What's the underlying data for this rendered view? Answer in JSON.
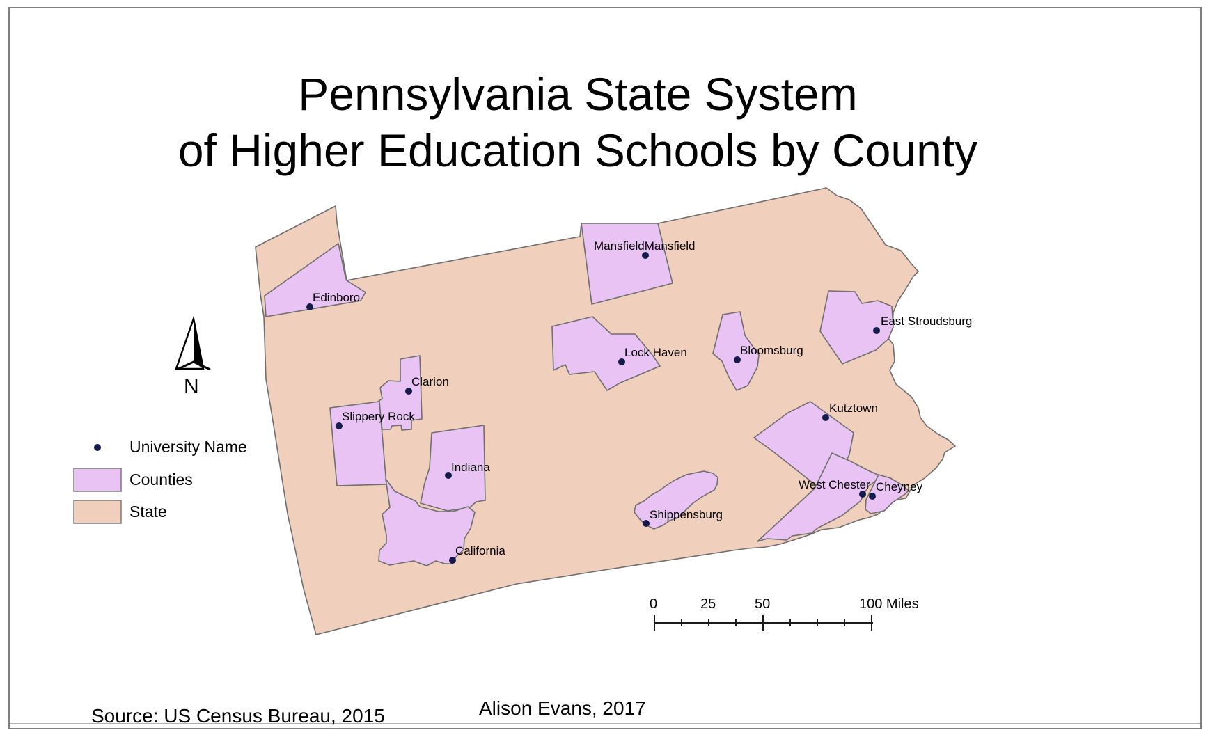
{
  "title": {
    "line1": "Pennsylvania State System",
    "line2": "of Higher Education Schools by County"
  },
  "schools": [
    {
      "name": "Edinboro"
    },
    {
      "name": "MansfieldMansfield"
    },
    {
      "name": "East Stroudsburg"
    },
    {
      "name": "Lock Haven"
    },
    {
      "name": "Bloomsburg"
    },
    {
      "name": "Clarion"
    },
    {
      "name": "Slippery Rock"
    },
    {
      "name": "Kutztown"
    },
    {
      "name": "Indiana"
    },
    {
      "name": "West Chester"
    },
    {
      "name": "Cheyney"
    },
    {
      "name": "Shippensburg"
    },
    {
      "name": "California"
    }
  ],
  "legend": {
    "university": "University Name",
    "counties": "Counties",
    "state": "State"
  },
  "north_arrow": {
    "label": "N"
  },
  "scale_bar": {
    "ticks": [
      "0",
      "25",
      "50",
      "100 Miles"
    ]
  },
  "source": "Source: US Census Bureau, 2015",
  "author": "Alison Evans, 2017",
  "colors": {
    "state_fill": "#f1cfbd",
    "county_fill": "#e8c3f3",
    "outline": "#6e6e6e",
    "point": "#141a4a"
  }
}
